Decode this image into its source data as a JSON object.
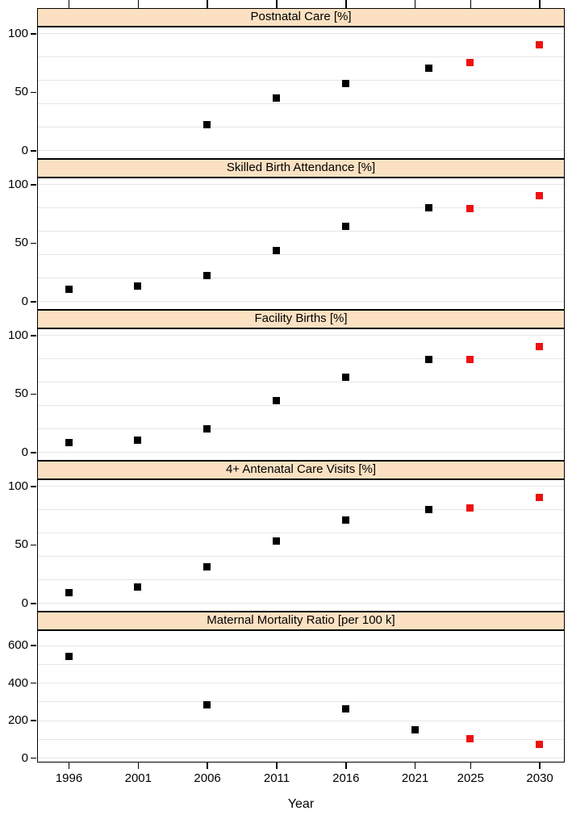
{
  "figure": {
    "xlabel": "Year",
    "x_ticks": [
      1996,
      2001,
      2006,
      2011,
      2016,
      2021,
      2025,
      2030
    ],
    "xlim": [
      1993.7,
      2031.8
    ],
    "colors": {
      "observed": "#000000",
      "projected": "#ee1111",
      "strip_background": "#fbe1c2",
      "gridline": "#e6e6e6",
      "panel_border": "#000000",
      "background": "#ffffff"
    }
  },
  "chart_data": [
    {
      "type": "scatter",
      "title": "Postnatal Care [%]",
      "ylim": [
        -6,
        105
      ],
      "y_ticks": [
        0,
        50,
        100
      ],
      "grid_lines": [
        0,
        20,
        40,
        60,
        80,
        100
      ],
      "series": [
        {
          "name": "observed",
          "color": "#000000",
          "points": [
            [
              2006,
              22
            ],
            [
              2011,
              45
            ],
            [
              2016,
              57
            ],
            [
              2022,
              70
            ]
          ]
        },
        {
          "name": "projected",
          "color": "#ee1111",
          "points": [
            [
              2025,
              75
            ],
            [
              2030,
              90
            ]
          ]
        }
      ]
    },
    {
      "type": "scatter",
      "title": "Skilled Birth Attendance [%]",
      "ylim": [
        -6,
        105
      ],
      "y_ticks": [
        0,
        50,
        100
      ],
      "grid_lines": [
        0,
        20,
        40,
        60,
        80,
        100
      ],
      "series": [
        {
          "name": "observed",
          "color": "#000000",
          "points": [
            [
              1996,
              10
            ],
            [
              2001,
              13
            ],
            [
              2006,
              22
            ],
            [
              2011,
              43
            ],
            [
              2016,
              64
            ],
            [
              2022,
              80
            ]
          ]
        },
        {
          "name": "projected",
          "color": "#ee1111",
          "points": [
            [
              2025,
              79
            ],
            [
              2030,
              90
            ]
          ]
        }
      ]
    },
    {
      "type": "scatter",
      "title": "Facility Births [%]",
      "ylim": [
        -6,
        105
      ],
      "y_ticks": [
        0,
        50,
        100
      ],
      "grid_lines": [
        0,
        20,
        40,
        60,
        80,
        100
      ],
      "series": [
        {
          "name": "observed",
          "color": "#000000",
          "points": [
            [
              1996,
              8
            ],
            [
              2001,
              10
            ],
            [
              2006,
              20
            ],
            [
              2011,
              44
            ],
            [
              2016,
              64
            ],
            [
              2022,
              79
            ]
          ]
        },
        {
          "name": "projected",
          "color": "#ee1111",
          "points": [
            [
              2025,
              79
            ],
            [
              2030,
              90
            ]
          ]
        }
      ]
    },
    {
      "type": "scatter",
      "title": "4+ Antenatal Care Visits [%]",
      "ylim": [
        -6,
        105
      ],
      "y_ticks": [
        0,
        50,
        100
      ],
      "grid_lines": [
        0,
        20,
        40,
        60,
        80,
        100
      ],
      "series": [
        {
          "name": "observed",
          "color": "#000000",
          "points": [
            [
              1996,
              9
            ],
            [
              2001,
              14
            ],
            [
              2006,
              31
            ],
            [
              2011,
              53
            ],
            [
              2016,
              71
            ],
            [
              2022,
              80
            ]
          ]
        },
        {
          "name": "projected",
          "color": "#ee1111",
          "points": [
            [
              2025,
              81
            ],
            [
              2030,
              90
            ]
          ]
        }
      ]
    },
    {
      "type": "scatter",
      "title": "Maternal Mortality Ratio [per 100 k]",
      "ylim": [
        -17,
        676
      ],
      "y_ticks": [
        0,
        200,
        400,
        600
      ],
      "grid_lines": [
        0,
        100,
        200,
        300,
        400,
        500,
        600
      ],
      "series": [
        {
          "name": "observed",
          "color": "#000000",
          "points": [
            [
              1996,
              540
            ],
            [
              2006,
              281
            ],
            [
              2016,
              259
            ],
            [
              2021,
              151
            ]
          ]
        },
        {
          "name": "projected",
          "color": "#ee1111",
          "points": [
            [
              2025,
              100
            ],
            [
              2030,
              70
            ]
          ]
        }
      ]
    }
  ]
}
